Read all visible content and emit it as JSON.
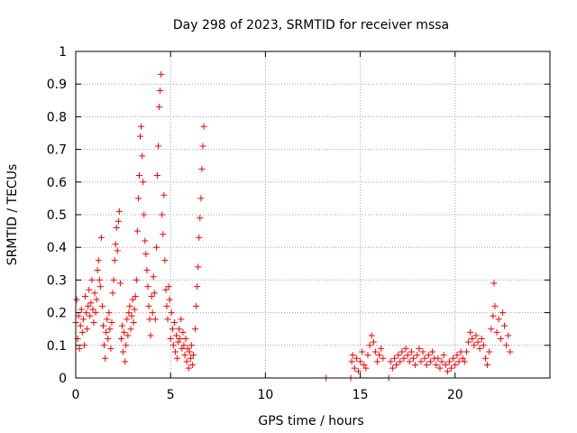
{
  "chart_data": {
    "type": "scatter",
    "title": "Day 298 of 2023, SRMTID for receiver mssa",
    "xlabel": "GPS time / hours",
    "ylabel": "SRMTID / TECUs",
    "xlim": [
      0,
      25
    ],
    "ylim": [
      0,
      1
    ],
    "xticks": [
      0,
      5,
      10,
      15,
      20
    ],
    "xtick_labels": [
      "0",
      "5",
      "10",
      "15",
      "20"
    ],
    "yticks": [
      0,
      0.1,
      0.2,
      0.3,
      0.4,
      0.5,
      0.6,
      0.7,
      0.8,
      0.9,
      1
    ],
    "ytick_labels": [
      "0",
      "0.1",
      "0.2",
      "0.3",
      "0.4",
      "0.5",
      "0.6",
      "0.7",
      "0.8",
      "0.9",
      "1"
    ],
    "grid": true,
    "marker": "+",
    "marker_color": "#ff0000",
    "series": [
      {
        "name": "SRMTID",
        "points": [
          [
            0.0,
            0.17
          ],
          [
            0.05,
            0.24
          ],
          [
            0.1,
            0.12
          ],
          [
            0.15,
            0.19
          ],
          [
            0.2,
            0.09
          ],
          [
            0.25,
            0.16
          ],
          [
            0.3,
            0.21
          ],
          [
            0.35,
            0.14
          ],
          [
            0.4,
            0.18
          ],
          [
            0.45,
            0.1
          ],
          [
            0.5,
            0.25
          ],
          [
            0.55,
            0.2
          ],
          [
            0.6,
            0.15
          ],
          [
            0.65,
            0.22
          ],
          [
            0.7,
            0.27
          ],
          [
            0.75,
            0.19
          ],
          [
            0.8,
            0.23
          ],
          [
            0.85,
            0.3
          ],
          [
            0.9,
            0.21
          ],
          [
            0.95,
            0.17
          ],
          [
            1.0,
            0.26
          ],
          [
            1.05,
            0.2
          ],
          [
            1.1,
            0.24
          ],
          [
            1.15,
            0.33
          ],
          [
            1.2,
            0.36
          ],
          [
            1.25,
            0.3
          ],
          [
            1.3,
            0.28
          ],
          [
            1.35,
            0.43
          ],
          [
            1.4,
            0.22
          ],
          [
            1.45,
            0.16
          ],
          [
            1.5,
            0.1
          ],
          [
            1.55,
            0.06
          ],
          [
            1.6,
            0.14
          ],
          [
            1.65,
            0.18
          ],
          [
            1.7,
            0.12
          ],
          [
            1.75,
            0.2
          ],
          [
            1.8,
            0.15
          ],
          [
            1.85,
            0.09
          ],
          [
            1.9,
            0.17
          ],
          [
            1.95,
            0.26
          ],
          [
            2.0,
            0.3
          ],
          [
            2.05,
            0.36
          ],
          [
            2.1,
            0.41
          ],
          [
            2.15,
            0.46
          ],
          [
            2.2,
            0.39
          ],
          [
            2.25,
            0.48
          ],
          [
            2.3,
            0.51
          ],
          [
            2.35,
            0.29
          ],
          [
            2.4,
            0.12
          ],
          [
            2.45,
            0.16
          ],
          [
            2.5,
            0.08
          ],
          [
            2.55,
            0.14
          ],
          [
            2.6,
            0.05
          ],
          [
            2.65,
            0.1
          ],
          [
            2.7,
            0.18
          ],
          [
            2.75,
            0.13
          ],
          [
            2.8,
            0.2
          ],
          [
            2.85,
            0.22
          ],
          [
            2.9,
            0.15
          ],
          [
            2.95,
            0.19
          ],
          [
            3.0,
            0.24
          ],
          [
            3.05,
            0.17
          ],
          [
            3.1,
            0.21
          ],
          [
            3.15,
            0.25
          ],
          [
            3.2,
            0.3
          ],
          [
            3.25,
            0.45
          ],
          [
            3.3,
            0.55
          ],
          [
            3.35,
            0.62
          ],
          [
            3.4,
            0.74
          ],
          [
            3.45,
            0.77
          ],
          [
            3.5,
            0.68
          ],
          [
            3.55,
            0.6
          ],
          [
            3.6,
            0.5
          ],
          [
            3.65,
            0.42
          ],
          [
            3.7,
            0.38
          ],
          [
            3.75,
            0.33
          ],
          [
            3.8,
            0.28
          ],
          [
            3.85,
            0.22
          ],
          [
            3.9,
            0.18
          ],
          [
            3.95,
            0.13
          ],
          [
            4.0,
            0.25
          ],
          [
            4.05,
            0.2
          ],
          [
            4.1,
            0.31
          ],
          [
            4.15,
            0.26
          ],
          [
            4.2,
            0.18
          ],
          [
            4.25,
            0.4
          ],
          [
            4.3,
            0.62
          ],
          [
            4.35,
            0.71
          ],
          [
            4.4,
            0.83
          ],
          [
            4.45,
            0.88
          ],
          [
            4.5,
            0.93
          ],
          [
            4.55,
            0.5
          ],
          [
            4.6,
            0.44
          ],
          [
            4.65,
            0.56
          ],
          [
            4.7,
            0.36
          ],
          [
            4.75,
            0.27
          ],
          [
            4.8,
            0.22
          ],
          [
            4.85,
            0.18
          ],
          [
            4.9,
            0.28
          ],
          [
            4.95,
            0.24
          ],
          [
            5.0,
            0.12
          ],
          [
            5.05,
            0.2
          ],
          [
            5.1,
            0.15
          ],
          [
            5.15,
            0.1
          ],
          [
            5.2,
            0.17
          ],
          [
            5.25,
            0.08
          ],
          [
            5.3,
            0.13
          ],
          [
            5.35,
            0.06
          ],
          [
            5.4,
            0.11
          ],
          [
            5.45,
            0.15
          ],
          [
            5.5,
            0.12
          ],
          [
            5.55,
            0.18
          ],
          [
            5.6,
            0.09
          ],
          [
            5.65,
            0.14
          ],
          [
            5.7,
            0.1
          ],
          [
            5.75,
            0.07
          ],
          [
            5.8,
            0.12
          ],
          [
            5.85,
            0.05
          ],
          [
            5.9,
            0.09
          ],
          [
            5.95,
            0.03
          ],
          [
            6.0,
            0.08
          ],
          [
            6.05,
            0.06
          ],
          [
            6.1,
            0.1
          ],
          [
            6.15,
            0.04
          ],
          [
            6.2,
            0.07
          ],
          [
            6.3,
            0.15
          ],
          [
            6.35,
            0.22
          ],
          [
            6.4,
            0.28
          ],
          [
            6.45,
            0.34
          ],
          [
            6.5,
            0.43
          ],
          [
            6.55,
            0.49
          ],
          [
            6.6,
            0.55
          ],
          [
            6.65,
            0.64
          ],
          [
            6.7,
            0.71
          ],
          [
            6.75,
            0.77
          ],
          [
            13.2,
            0.0
          ],
          [
            14.5,
            0.0
          ],
          [
            14.55,
            0.05
          ],
          [
            14.6,
            0.07
          ],
          [
            14.7,
            0.03
          ],
          [
            14.8,
            0.06
          ],
          [
            14.9,
            0.02
          ],
          [
            15.0,
            0.05
          ],
          [
            15.1,
            0.08
          ],
          [
            15.2,
            0.04
          ],
          [
            15.3,
            0.03
          ],
          [
            15.4,
            0.07
          ],
          [
            15.5,
            0.1
          ],
          [
            15.6,
            0.13
          ],
          [
            15.7,
            0.11
          ],
          [
            15.8,
            0.08
          ],
          [
            15.9,
            0.05
          ],
          [
            16.0,
            0.07
          ],
          [
            16.1,
            0.09
          ],
          [
            16.2,
            0.06
          ],
          [
            16.5,
            0.0
          ],
          [
            16.6,
            0.05
          ],
          [
            16.7,
            0.03
          ],
          [
            16.8,
            0.06
          ],
          [
            16.9,
            0.04
          ],
          [
            17.0,
            0.07
          ],
          [
            17.1,
            0.05
          ],
          [
            17.2,
            0.08
          ],
          [
            17.3,
            0.06
          ],
          [
            17.4,
            0.09
          ],
          [
            17.5,
            0.07
          ],
          [
            17.6,
            0.05
          ],
          [
            17.7,
            0.08
          ],
          [
            17.8,
            0.06
          ],
          [
            17.9,
            0.04
          ],
          [
            18.0,
            0.07
          ],
          [
            18.1,
            0.09
          ],
          [
            18.2,
            0.05
          ],
          [
            18.3,
            0.08
          ],
          [
            18.4,
            0.06
          ],
          [
            18.5,
            0.04
          ],
          [
            18.6,
            0.07
          ],
          [
            18.7,
            0.05
          ],
          [
            18.8,
            0.08
          ],
          [
            18.9,
            0.06
          ],
          [
            19.0,
            0.04
          ],
          [
            19.1,
            0.06
          ],
          [
            19.2,
            0.03
          ],
          [
            19.3,
            0.05
          ],
          [
            19.4,
            0.07
          ],
          [
            19.5,
            0.04
          ],
          [
            19.6,
            0.02
          ],
          [
            19.7,
            0.05
          ],
          [
            19.8,
            0.03
          ],
          [
            19.9,
            0.06
          ],
          [
            20.0,
            0.04
          ],
          [
            20.1,
            0.07
          ],
          [
            20.2,
            0.05
          ],
          [
            20.3,
            0.08
          ],
          [
            20.4,
            0.06
          ],
          [
            20.5,
            0.05
          ],
          [
            20.6,
            0.08
          ],
          [
            20.7,
            0.11
          ],
          [
            20.8,
            0.14
          ],
          [
            20.9,
            0.12
          ],
          [
            21.0,
            0.1
          ],
          [
            21.1,
            0.13
          ],
          [
            21.2,
            0.11
          ],
          [
            21.3,
            0.09
          ],
          [
            21.4,
            0.12
          ],
          [
            21.5,
            0.1
          ],
          [
            21.6,
            0.06
          ],
          [
            21.7,
            0.04
          ],
          [
            21.8,
            0.08
          ],
          [
            21.9,
            0.15
          ],
          [
            22.0,
            0.19
          ],
          [
            22.05,
            0.29
          ],
          [
            22.1,
            0.22
          ],
          [
            22.2,
            0.14
          ],
          [
            22.3,
            0.18
          ],
          [
            22.4,
            0.12
          ],
          [
            22.5,
            0.2
          ],
          [
            22.6,
            0.16
          ],
          [
            22.7,
            0.1
          ],
          [
            22.8,
            0.13
          ],
          [
            22.9,
            0.08
          ]
        ]
      }
    ]
  }
}
